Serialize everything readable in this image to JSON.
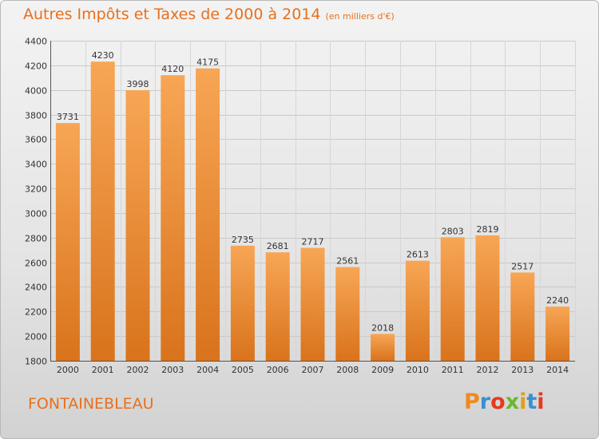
{
  "header": {
    "title": "Autres Impôts et Taxes de 2000 à 2014",
    "subtitle": "(en milliers d'€)"
  },
  "footer": {
    "commune": "FONTAINEBLEAU",
    "logo_letters": [
      "P",
      "r",
      "o",
      "x",
      "i",
      "t",
      "i"
    ],
    "logo_colors": [
      "#f08a1c",
      "#3a8fd0",
      "#e8381c",
      "#6ab82c",
      "#e0a01c",
      "#3a8fd0",
      "#e8381c"
    ]
  },
  "colors": {
    "bar_top": "#f7a655",
    "bar_bottom": "#d9731c",
    "title": "#e8701c"
  },
  "chart_data": {
    "type": "bar",
    "title": "Autres Impôts et Taxes de 2000 à 2014",
    "subtitle": "(en milliers d'€)",
    "xlabel": "",
    "ylabel": "",
    "categories": [
      "2000",
      "2001",
      "2002",
      "2003",
      "2004",
      "2005",
      "2006",
      "2007",
      "2008",
      "2009",
      "2010",
      "2011",
      "2012",
      "2013",
      "2014"
    ],
    "values": [
      3731,
      4230,
      3998,
      4120,
      4175,
      2735,
      2681,
      2717,
      2561,
      2018,
      2613,
      2803,
      2819,
      2517,
      2240
    ],
    "ylim": [
      1800,
      4400
    ],
    "yticks": [
      1800,
      2000,
      2200,
      2400,
      2600,
      2800,
      3000,
      3200,
      3400,
      3600,
      3800,
      4000,
      4200,
      4400
    ],
    "grid": true
  }
}
